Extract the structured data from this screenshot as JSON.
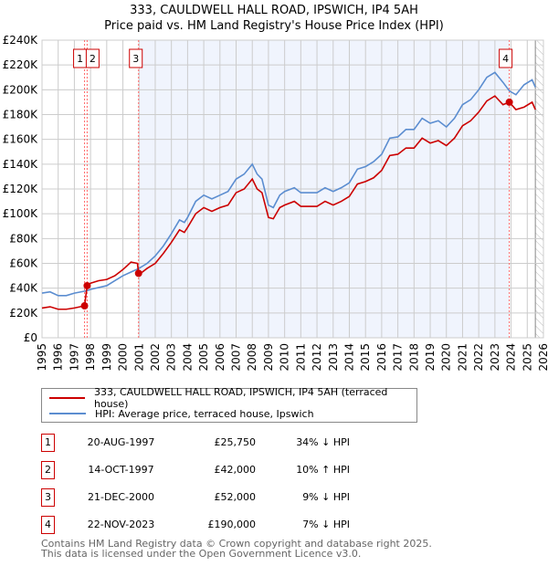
{
  "chart_data": {
    "type": "line",
    "title": "333, CAULDWELL HALL ROAD, IPSWICH, IP4 5AH",
    "subtitle": "Price paid vs. HM Land Registry's House Price Index (HPI)",
    "xlim": [
      1995,
      2026
    ],
    "ylim": [
      0,
      240000
    ],
    "y_ticks": [
      "£0",
      "£20K",
      "£40K",
      "£60K",
      "£80K",
      "£100K",
      "£120K",
      "£140K",
      "£160K",
      "£180K",
      "£200K",
      "£220K",
      "£240K"
    ],
    "x_ticks": [
      "1995",
      "1996",
      "1997",
      "1998",
      "1999",
      "2000",
      "2001",
      "2002",
      "2003",
      "2004",
      "2005",
      "2006",
      "2007",
      "2008",
      "2009",
      "2010",
      "2011",
      "2012",
      "2013",
      "2014",
      "2015",
      "2016",
      "2017",
      "2018",
      "2019",
      "2020",
      "2021",
      "2022",
      "2023",
      "2024",
      "2025",
      "2026"
    ],
    "grid": true,
    "series": [
      {
        "name": "333, CAULDWELL HALL ROAD, IPSWICH, IP4 5AH (terraced house)",
        "color": "#cc0000",
        "x": [
          1995,
          1995.5,
          1996,
          1996.5,
          1997,
          1997.63,
          1997.79,
          1998,
          1998.5,
          1999,
          1999.5,
          2000,
          2000.5,
          2000.9,
          2000.97,
          2001.2,
          2001.5,
          2002,
          2002.5,
          2003,
          2003.5,
          2003.8,
          2004,
          2004.5,
          2005,
          2005.5,
          2006,
          2006.5,
          2007,
          2007.5,
          2008,
          2008.3,
          2008.6,
          2009,
          2009.3,
          2009.7,
          2010,
          2010.6,
          2011,
          2011.5,
          2012,
          2012.5,
          2013,
          2013.5,
          2014,
          2014.5,
          2015,
          2015.5,
          2016,
          2016.5,
          2017,
          2017.5,
          2018,
          2018.5,
          2019,
          2019.5,
          2020,
          2020.5,
          2021,
          2021.5,
          2022,
          2022.5,
          2023,
          2023.5,
          2023.89,
          2024.3,
          2024.8,
          2025.3,
          2025.5
        ],
        "y": [
          24000,
          25000,
          23000,
          23000,
          24000,
          25750,
          42000,
          44000,
          46000,
          47000,
          50000,
          55000,
          61000,
          60000,
          52000,
          53000,
          56000,
          60000,
          68000,
          77000,
          87000,
          85000,
          89000,
          100000,
          105000,
          102000,
          105000,
          107000,
          117000,
          120000,
          128000,
          120000,
          117000,
          97000,
          96000,
          105000,
          107000,
          110000,
          106000,
          106000,
          106000,
          110000,
          107000,
          110000,
          114000,
          124000,
          126000,
          129000,
          135000,
          147000,
          148000,
          153000,
          153000,
          161000,
          157000,
          159000,
          155000,
          161000,
          171000,
          175000,
          182000,
          191000,
          195000,
          188000,
          190000,
          184000,
          186000,
          190000,
          184000
        ]
      },
      {
        "name": "HPI: Average price, terraced house, Ipswich",
        "color": "#5b8dd0",
        "x": [
          1995,
          1995.5,
          1996,
          1996.5,
          1997,
          1997.8,
          1998,
          1999,
          2000,
          2000.5,
          2001,
          2001.5,
          2002,
          2002.5,
          2003,
          2003.5,
          2003.8,
          2004,
          2004.5,
          2005,
          2005.5,
          2006,
          2006.5,
          2007,
          2007.5,
          2008,
          2008.3,
          2008.6,
          2009,
          2009.3,
          2009.7,
          2010,
          2010.6,
          2011,
          2011.5,
          2012,
          2012.5,
          2013,
          2013.5,
          2014,
          2014.5,
          2015,
          2015.5,
          2016,
          2016.5,
          2017,
          2017.5,
          2018,
          2018.5,
          2019,
          2019.5,
          2020,
          2020.5,
          2021,
          2021.5,
          2022,
          2022.5,
          2023,
          2023.5,
          2023.9,
          2024.3,
          2024.8,
          2025.3,
          2025.5
        ],
        "y": [
          36000,
          37000,
          34000,
          34000,
          36000,
          38000,
          39000,
          42000,
          50000,
          53000,
          56000,
          60000,
          66000,
          74000,
          84000,
          95000,
          93000,
          97000,
          110000,
          115000,
          112000,
          115000,
          118000,
          128000,
          132000,
          140000,
          132000,
          128000,
          107000,
          105000,
          115000,
          118000,
          121000,
          117000,
          117000,
          117000,
          121000,
          118000,
          121000,
          125000,
          136000,
          138000,
          142000,
          148000,
          161000,
          162000,
          168000,
          168000,
          177000,
          173000,
          175000,
          170000,
          177000,
          188000,
          192000,
          200000,
          210000,
          214000,
          206000,
          199000,
          196000,
          204000,
          208000,
          202000
        ]
      }
    ],
    "transactions": [
      {
        "num": "1",
        "x": 1997.63,
        "price": 25750,
        "date": "20-AUG-1997",
        "price_label": "£25,750",
        "hpi": "34% ↓ HPI"
      },
      {
        "num": "2",
        "x": 1997.79,
        "price": 42000,
        "date": "14-OCT-1997",
        "price_label": "£42,000",
        "hpi": "10% ↑ HPI"
      },
      {
        "num": "3",
        "x": 2000.97,
        "price": 52000,
        "date": "21-DEC-2000",
        "price_label": "£52,000",
        "hpi": "9% ↓ HPI"
      },
      {
        "num": "4",
        "x": 2023.89,
        "price": 190000,
        "date": "22-NOV-2023",
        "price_label": "£190,000",
        "hpi": "7% ↓ HPI"
      }
    ],
    "shaded_range": [
      2000.97,
      2023.89
    ],
    "hatched_from": 2025.5
  },
  "footer": {
    "line1": "Contains HM Land Registry data © Crown copyright and database right 2025.",
    "line2": "This data is licensed under the Open Government Licence v3.0."
  }
}
